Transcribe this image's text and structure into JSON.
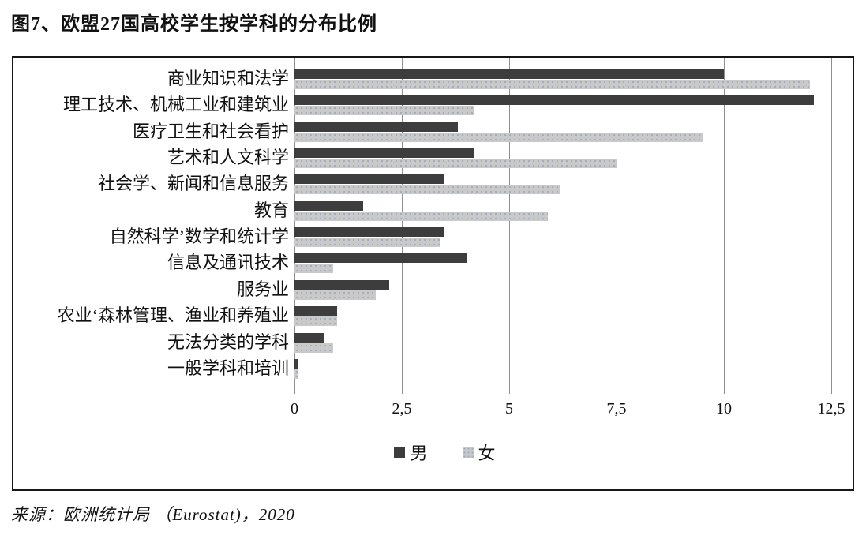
{
  "page": {
    "title": "图7、欧盟27国高校学生按学科的分布比例",
    "source": "来源：欧洲统计局 （Eurostat)，2020"
  },
  "chart_data": {
    "type": "bar",
    "orientation": "horizontal",
    "title": "图7、欧盟27国高校学生按学科的分布比例",
    "xlabel": "",
    "ylabel": "",
    "xlim": [
      0,
      13.1
    ],
    "grid": "vertical",
    "legend_position": "bottom",
    "categories": [
      "商业知识和法学",
      "理工技术、机械工业和建筑业",
      "医疗卫生和社会看护",
      "艺术和人文科学",
      "社会学、新闻和信息服务",
      "教育",
      "自然科学’数学和统计学",
      "信息及通讯技术",
      "服务业",
      "农业‘森林管理、渔业和养殖业",
      "无法分类的学科",
      "一般学科和培训"
    ],
    "series": [
      {
        "name": "男",
        "color": "#3d3d3d",
        "values": [
          10.0,
          12.1,
          3.8,
          4.2,
          3.5,
          1.6,
          3.5,
          4.0,
          2.2,
          1.0,
          0.7,
          0.1
        ]
      },
      {
        "name": "女",
        "color": "#c9c9c9",
        "values": [
          12.0,
          4.2,
          9.5,
          7.5,
          6.2,
          5.9,
          3.4,
          0.9,
          1.9,
          1.0,
          0.9,
          0.1
        ]
      }
    ],
    "x_ticks": {
      "values": [
        0,
        2.5,
        5,
        7.5,
        10,
        12.5
      ],
      "labels": [
        "0",
        "2,5",
        "5",
        "7,5",
        "10",
        "12,5"
      ]
    }
  }
}
